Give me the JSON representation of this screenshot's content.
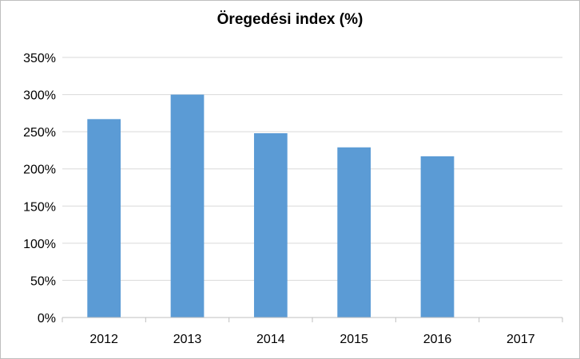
{
  "chart_data": {
    "type": "bar",
    "title": "Öregedési index (%)",
    "categories": [
      "2012",
      "2013",
      "2014",
      "2015",
      "2016",
      "2017"
    ],
    "values": [
      267,
      300,
      248,
      229,
      217,
      null
    ],
    "ylim": [
      0,
      350
    ],
    "yticks": [
      "0%",
      "50%",
      "100%",
      "150%",
      "200%",
      "250%",
      "300%",
      "350%"
    ],
    "ytick_values": [
      0,
      50,
      100,
      150,
      200,
      250,
      300,
      350
    ],
    "xlabel": "",
    "ylabel": "",
    "grid": true,
    "legend": "none",
    "bar_color": "#5b9bd5",
    "grid_color": "#d9d9d9",
    "axis_color": "#bfbfbf"
  }
}
